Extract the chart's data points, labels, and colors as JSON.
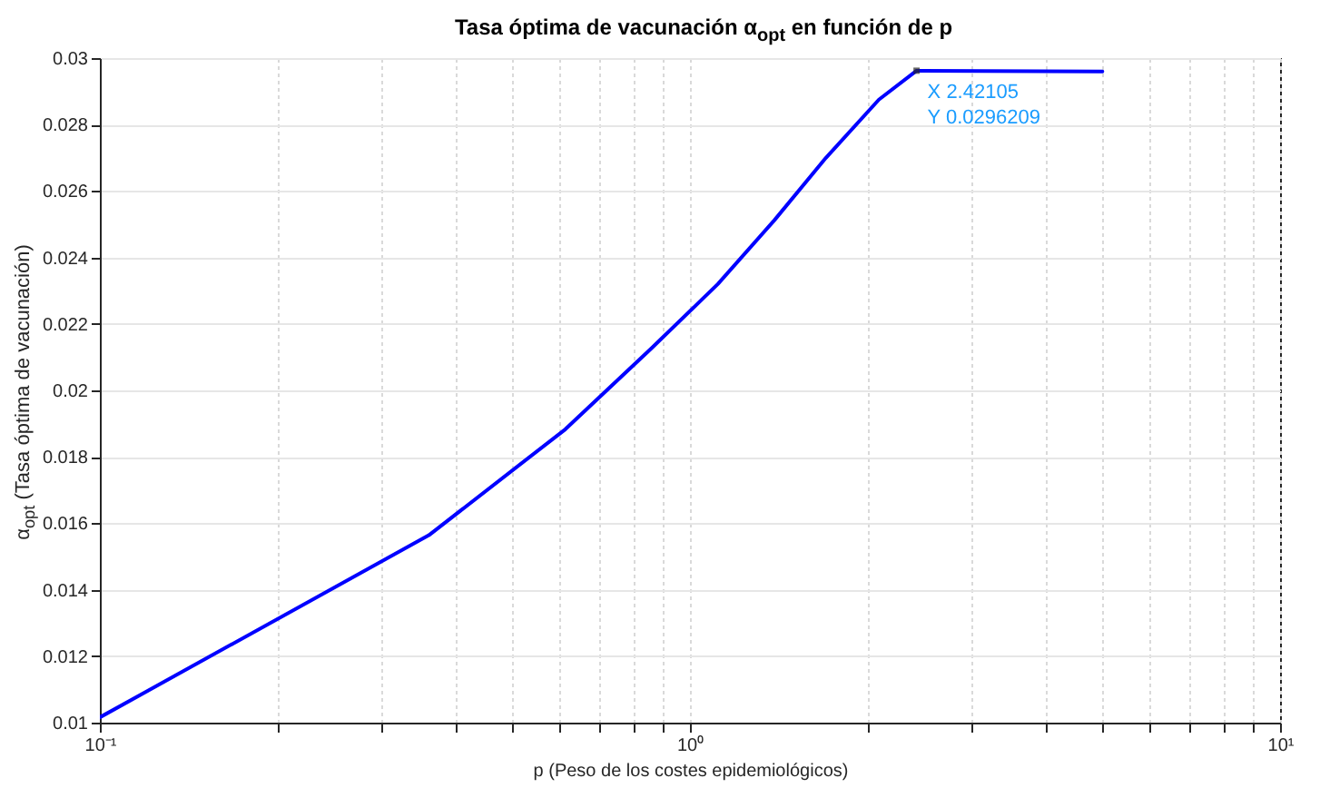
{
  "chart_data": {
    "type": "line",
    "title": "Tasa óptima de vacunación α$_{opt}$ en función de p",
    "xlabel": "p (Peso de los costes epidemiológicos)",
    "ylabel": "α$_{opt}$ (Tasa óptima de vacunación)",
    "x": [
      0.1,
      0.361,
      0.615,
      0.861,
      1.115,
      1.39,
      1.7,
      2.09,
      2.42105,
      5.0
    ],
    "series": [
      {
        "color": "#0000ff",
        "values": [
          0.01016,
          0.01564,
          0.01883,
          0.02127,
          0.0232,
          0.02512,
          0.027,
          0.02875,
          0.0296209,
          0.0296
        ]
      }
    ],
    "log": "x",
    "xlim": [
      0.1,
      10
    ],
    "ylim": [
      0.01,
      0.03
    ],
    "xticks": [
      {
        "value": 0.1,
        "label": "10⁻¹"
      },
      {
        "value": 0.2,
        "label": null
      },
      {
        "value": 0.3,
        "label": null
      },
      {
        "value": 0.4,
        "label": null
      },
      {
        "value": 0.5,
        "label": null
      },
      {
        "value": 0.6,
        "label": null
      },
      {
        "value": 0.7,
        "label": null
      },
      {
        "value": 0.8,
        "label": null
      },
      {
        "value": 0.9,
        "label": null
      },
      {
        "value": 1,
        "label": "10⁰"
      },
      {
        "value": 2,
        "label": null
      },
      {
        "value": 3,
        "label": null
      },
      {
        "value": 4,
        "label": null
      },
      {
        "value": 5,
        "label": null
      },
      {
        "value": 6,
        "label": null
      },
      {
        "value": 7,
        "label": null
      },
      {
        "value": 8,
        "label": null
      },
      {
        "value": 9,
        "label": null
      },
      {
        "value": 10,
        "label": "10¹"
      }
    ],
    "yticks": [
      0.01,
      0.012,
      0.014,
      0.016,
      0.018,
      0.02,
      0.022,
      0.024,
      0.026,
      0.028,
      0.03
    ],
    "grid": true,
    "line_style": "solid",
    "marker": "none",
    "annotations": [
      {
        "text": "X 2.42105\nY 0.0296209",
        "x": 2.42105,
        "y": 0.0296209
      }
    ]
  }
}
